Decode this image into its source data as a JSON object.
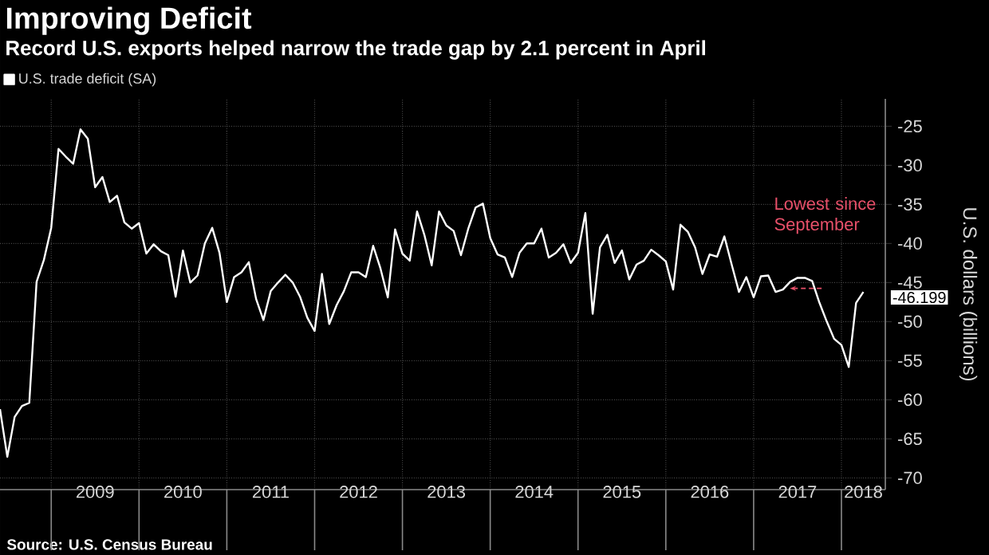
{
  "chart_data": {
    "type": "line",
    "title": "Improving Deficit",
    "subtitle": "Record U.S. exports helped narrow the trade gap by 2.1 percent in April",
    "ylabel": "U.S. dollars (billions)",
    "annotations": [
      "Lowest since September",
      "Source: U.S. Census Bureau"
    ],
    "x": [
      "2008-06",
      "2008-07",
      "2008-08",
      "2008-09",
      "2008-10",
      "2008-11",
      "2008-12",
      "2009-01",
      "2009-02",
      "2009-03",
      "2009-04",
      "2009-05",
      "2009-06",
      "2009-07",
      "2009-08",
      "2009-09",
      "2009-10",
      "2009-11",
      "2009-12",
      "2010-01",
      "2010-02",
      "2010-03",
      "2010-04",
      "2010-05",
      "2010-06",
      "2010-07",
      "2010-08",
      "2010-09",
      "2010-10",
      "2010-11",
      "2010-12",
      "2011-01",
      "2011-02",
      "2011-03",
      "2011-04",
      "2011-05",
      "2011-06",
      "2011-07",
      "2011-08",
      "2011-09",
      "2011-10",
      "2011-11",
      "2011-12",
      "2012-01",
      "2012-02",
      "2012-03",
      "2012-04",
      "2012-05",
      "2012-06",
      "2012-07",
      "2012-08",
      "2012-09",
      "2012-10",
      "2012-11",
      "2012-12",
      "2013-01",
      "2013-02",
      "2013-03",
      "2013-04",
      "2013-05",
      "2013-06",
      "2013-07",
      "2013-08",
      "2013-09",
      "2013-10",
      "2013-11",
      "2013-12",
      "2014-01",
      "2014-02",
      "2014-03",
      "2014-04",
      "2014-05",
      "2014-06",
      "2014-07",
      "2014-08",
      "2014-09",
      "2014-10",
      "2014-11",
      "2014-12",
      "2015-01",
      "2015-02",
      "2015-03",
      "2015-04",
      "2015-05",
      "2015-06",
      "2015-07",
      "2015-08",
      "2015-09",
      "2015-10",
      "2015-11",
      "2015-12",
      "2016-01",
      "2016-02",
      "2016-03",
      "2016-04",
      "2016-05",
      "2016-06",
      "2016-07",
      "2016-08",
      "2016-09",
      "2016-10",
      "2016-11",
      "2016-12",
      "2017-01",
      "2017-02",
      "2017-03",
      "2017-04",
      "2017-05",
      "2017-06",
      "2017-07",
      "2017-08",
      "2017-09",
      "2017-10",
      "2017-11",
      "2017-12",
      "2018-01",
      "2018-02",
      "2018-03",
      "2018-04"
    ],
    "series": [
      {
        "name": "U.S. trade deficit (SA)",
        "color": "#ffffff",
        "values": [
          -61.2,
          -67.3,
          -62.2,
          -60.8,
          -60.4,
          -44.9,
          -42.1,
          -38,
          -27.9,
          -28.9,
          -29.8,
          -25.4,
          -26.6,
          -32.8,
          -31.5,
          -34.7,
          -33.9,
          -37.3,
          -38.1,
          -37.4,
          -41.3,
          -40.1,
          -41,
          -41.5,
          -46.8,
          -40.9,
          -45,
          -44.1,
          -40,
          -38,
          -41.2,
          -47.5,
          -44.3,
          -43.7,
          -42.4,
          -47.1,
          -49.8,
          -46.1,
          -45,
          -44,
          -45,
          -46.8,
          -49.5,
          -51.2,
          -43.9,
          -50.3,
          -47.9,
          -46.1,
          -43.7,
          -43.7,
          -44.3,
          -40.3,
          -43.2,
          -46.9,
          -38.2,
          -41.3,
          -42.2,
          -35.9,
          -38.9,
          -42.8,
          -35.9,
          -37.7,
          -38.4,
          -41.5,
          -38.1,
          -35.4,
          -34.9,
          -39.3,
          -41.4,
          -41.8,
          -44.3,
          -41.2,
          -40,
          -40,
          -38.1,
          -41.8,
          -41.2,
          -40.1,
          -42.5,
          -41.2,
          -36.1,
          -49,
          -40.5,
          -38.9,
          -42.5,
          -40.9,
          -44.6,
          -42.7,
          -42.2,
          -40.8,
          -41.5,
          -42.3,
          -45.9,
          -37.6,
          -38.5,
          -40.5,
          -43.9,
          -41.4,
          -41.7,
          -39.1,
          -42.7,
          -46.2,
          -44.3,
          -46.9,
          -44.2,
          -44.1,
          -46.2,
          -45.9,
          -44.9,
          -44.4,
          -44.4,
          -44.8,
          -47.6,
          -50,
          -52.2,
          -53,
          -55.8,
          -47.6,
          -46.199
        ],
        "value_labels": [
          null,
          null,
          null,
          null,
          null,
          null,
          null,
          null,
          null,
          null,
          null,
          null,
          null,
          null,
          null,
          null,
          null,
          null,
          null,
          null,
          null,
          null,
          null,
          null,
          null,
          null,
          null,
          null,
          null,
          null,
          null,
          null,
          null,
          null,
          null,
          null,
          null,
          null,
          null,
          null,
          null,
          null,
          null,
          null,
          null,
          null,
          null,
          null,
          null,
          null,
          null,
          null,
          null,
          null,
          null,
          null,
          null,
          null,
          null,
          null,
          null,
          null,
          null,
          null,
          null,
          null,
          null,
          null,
          null,
          null,
          null,
          null,
          null,
          null,
          null,
          null,
          null,
          null,
          null,
          null,
          null,
          null,
          null,
          null,
          null,
          null,
          null,
          null,
          null,
          null,
          null,
          null,
          null,
          null,
          null,
          null,
          null,
          null,
          null,
          null,
          null,
          null,
          null,
          null,
          null,
          null,
          null,
          null,
          null,
          null,
          null,
          null,
          null,
          null,
          null,
          null,
          null,
          null,
          "-46.199"
        ]
      }
    ],
    "xlim": [
      "2008-06",
      "2018-07"
    ],
    "xticks": [
      {
        "value": "2009-01",
        "label": null
      },
      {
        "value": "2010-01",
        "label": null
      },
      {
        "value": "2011-01",
        "label": null
      },
      {
        "value": "2012-01",
        "label": null
      },
      {
        "value": "2013-01",
        "label": null
      },
      {
        "value": "2014-01",
        "label": null
      },
      {
        "value": "2015-01",
        "label": null
      },
      {
        "value": "2016-01",
        "label": null
      },
      {
        "value": "2017-01",
        "label": null
      },
      {
        "value": "2018-01",
        "label": null
      },
      {
        "value": "2009-07",
        "label": "2009"
      },
      {
        "value": "2010-07",
        "label": "2010"
      },
      {
        "value": "2011-07",
        "label": "2011"
      },
      {
        "value": "2012-07",
        "label": "2012"
      },
      {
        "value": "2013-07",
        "label": "2013"
      },
      {
        "value": "2014-07",
        "label": "2014"
      },
      {
        "value": "2015-07",
        "label": "2015"
      },
      {
        "value": "2016-07",
        "label": "2016"
      },
      {
        "value": "2017-07",
        "label": "2017"
      },
      {
        "value": "2018-04",
        "label": "2018"
      }
    ],
    "ylim": [
      -71.5,
      -21.5
    ],
    "yticks": [
      -70,
      -65,
      -60,
      -55,
      -50,
      -45,
      -40,
      -35,
      -30,
      -25
    ],
    "grid": true,
    "legend": "top left",
    "marker": "none",
    "line_style": "solid"
  }
}
